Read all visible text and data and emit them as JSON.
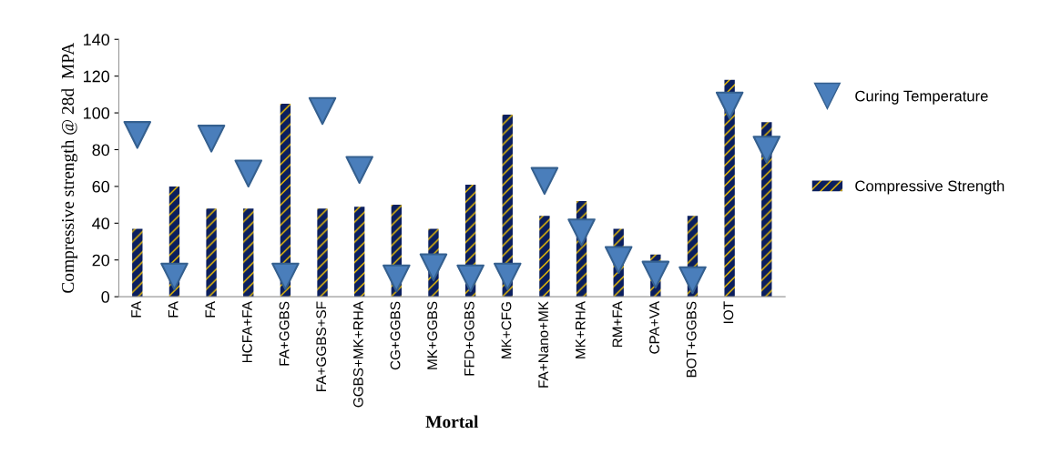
{
  "chart_data": {
    "type": "bar",
    "xlabel": "Mortal",
    "ylabel": "Compressive strength @ 28d  MPA",
    "categories": [
      "FA",
      "FA",
      "FA",
      "HCFA+FA",
      "FA+GGBS",
      "FA+GGBS+SF",
      "GGBS+MK+RHA",
      "CG+GGBS",
      "MK+GGBS",
      "FFD+GGBS",
      "MK+CFG",
      "FA+Nano+MK",
      "MK+RHA",
      "RM+FA",
      "CPA+VA",
      "BOT+GGBS",
      "IOT",
      null
    ],
    "series": [
      {
        "name": "Compressive Strength",
        "color": "#0b1f5e",
        "values": [
          37,
          60,
          48,
          48,
          105,
          48,
          49,
          50,
          37,
          61,
          99,
          44,
          52,
          37,
          23,
          44,
          118,
          95
        ]
      },
      {
        "name": "Curing Temperature",
        "type": "scatter",
        "marker": "triangle",
        "color": "#4a7ebb",
        "values": [
          88,
          11,
          86,
          67,
          11,
          101,
          69,
          10,
          16,
          10,
          11,
          63,
          35,
          20,
          12,
          9,
          104,
          80
        ]
      }
    ],
    "ylim": [
      0,
      140
    ],
    "yticks": [
      0,
      20,
      40,
      60,
      80,
      100,
      120,
      140
    ],
    "grid": false,
    "legend": "right"
  }
}
